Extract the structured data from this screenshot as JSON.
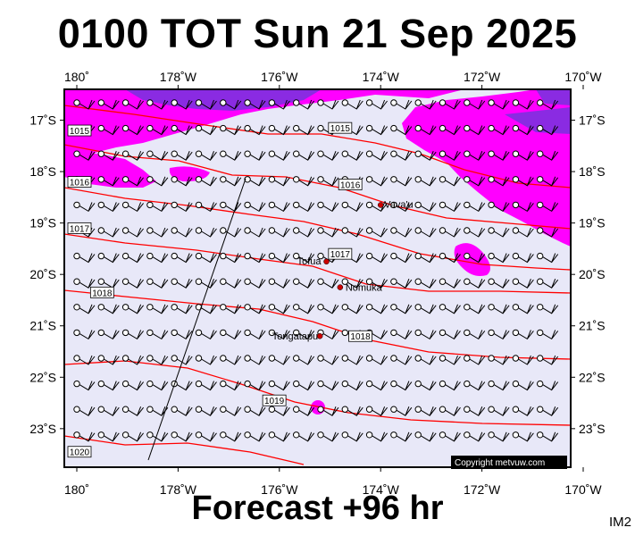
{
  "title": "0100 TOT Sun 21 Sep 2025",
  "footer": "Forecast +96 hr",
  "corner_label": "IM2",
  "copyright": "Copyright metvuw.com",
  "map": {
    "lon_range": [
      180,
      170
    ],
    "lat_range": [
      -16.4,
      -23.75
    ],
    "lon_ticks": [
      {
        "lon": 180,
        "label": "180˚"
      },
      {
        "lon": 178,
        "label": "178˚W"
      },
      {
        "lon": 176,
        "label": "176˚W"
      },
      {
        "lon": 174,
        "label": "174˚W"
      },
      {
        "lon": 172,
        "label": "172˚W"
      },
      {
        "lon": 170,
        "label": "170˚W"
      }
    ],
    "lat_ticks": [
      {
        "lat": -17,
        "label": "17˚S"
      },
      {
        "lat": -18,
        "label": "18˚S"
      },
      {
        "lat": -19,
        "label": "19˚S"
      },
      {
        "lat": -20,
        "label": "20˚S"
      },
      {
        "lat": -21,
        "label": "21˚S"
      },
      {
        "lat": -22,
        "label": "22˚S"
      },
      {
        "lat": -23,
        "label": "23˚S"
      }
    ],
    "places": [
      {
        "name": "Vava'u",
        "lon": 174.0,
        "lat": -18.65
      },
      {
        "name": "Tofua",
        "lon": 175.07,
        "lat": -19.75
      },
      {
        "name": "Nomuka",
        "lon": 174.8,
        "lat": -20.25
      },
      {
        "name": "Tongatapu",
        "lon": 175.2,
        "lat": -21.2
      }
    ],
    "isobars": [
      {
        "value": "1015",
        "label_lon": 180,
        "label_lat": -17.2
      },
      {
        "value": "1015",
        "label_lon": 174.8,
        "label_lat": -17.15
      },
      {
        "value": "1016",
        "label_lon": 180,
        "label_lat": -18.2
      },
      {
        "value": "1016",
        "label_lon": 174.6,
        "label_lat": -18.25
      },
      {
        "value": "1017",
        "label_lon": 180,
        "label_lat": -19.1
      },
      {
        "value": "1017",
        "label_lon": 174.8,
        "label_lat": -19.6
      },
      {
        "value": "1018",
        "label_lon": 179.5,
        "label_lat": -20.35
      },
      {
        "value": "1018",
        "label_lon": 174.4,
        "label_lat": -21.2
      },
      {
        "value": "1019",
        "label_lon": 176.1,
        "label_lat": -22.45
      },
      {
        "value": "1020",
        "label_lon": 180,
        "label_lat": -23.45
      }
    ]
  },
  "colors": {
    "background": "#e8e8f8",
    "rain_light": "#ff00ff",
    "rain_heavy": "#8a2be2",
    "isobar": "#ff0000",
    "frame": "#000000"
  },
  "icons": {
    "wind_barb": "wind-barb-icon",
    "place_marker": "red-dot-icon"
  }
}
